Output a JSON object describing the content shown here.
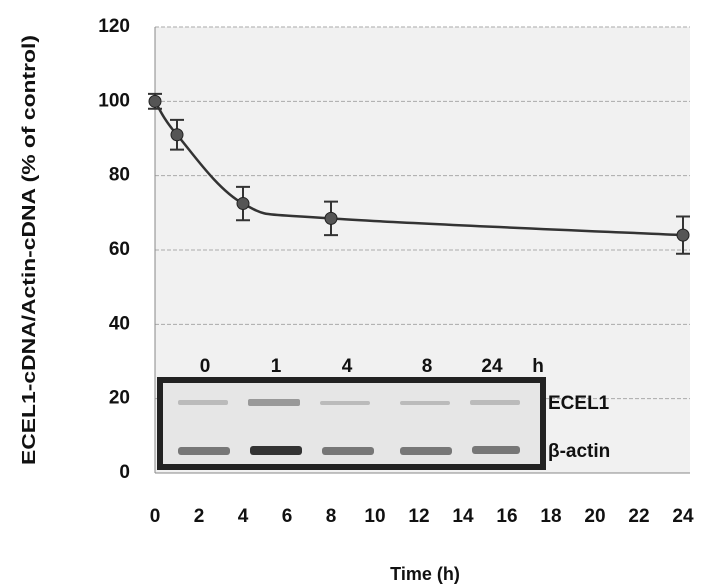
{
  "chart_data": {
    "type": "line",
    "x_label": "Time (h)",
    "y_label": "ECEL1-cDNA/Actin-cDNA (% of control)",
    "x": [
      0,
      1,
      4,
      8,
      24
    ],
    "series": [
      {
        "color": "#333333",
        "values": [
          100,
          91,
          72.5,
          68.5,
          64
        ],
        "errors": [
          2,
          4,
          4.5,
          4.5,
          5
        ]
      }
    ],
    "xlim": [
      0,
      24
    ],
    "xticks": [
      0,
      2,
      4,
      6,
      8,
      10,
      12,
      14,
      16,
      18,
      20,
      22,
      24
    ],
    "ylim": [
      0,
      120
    ],
    "yticks": [
      0,
      20,
      40,
      60,
      80,
      100,
      120
    ],
    "grid": true,
    "inset": {
      "lanes": [
        "0",
        "1",
        "4",
        "8",
        "24"
      ],
      "unit": "h",
      "rows": [
        "ECEL1",
        "β-actin"
      ]
    }
  }
}
